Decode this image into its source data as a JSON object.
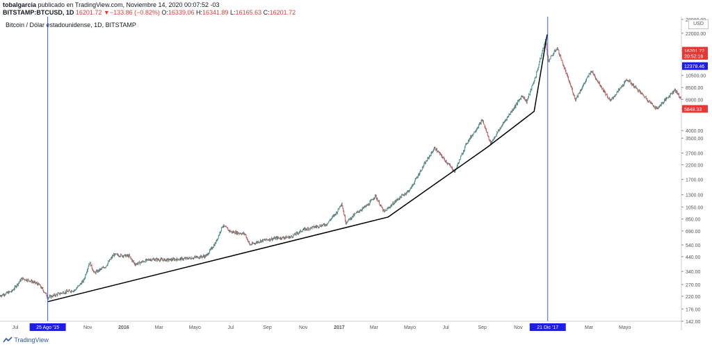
{
  "header": {
    "author": "tobalgarcia",
    "published_text": "publicado en TradingView.com, Noviembre 14, 2020 00:07:52 -03",
    "symbol": "BITSTAMP:BTCUSD, 1D",
    "last": "16201.72",
    "change": "▼−133.86 (−0.82%)",
    "open_label": "O:",
    "open": "16339.06",
    "high_label": "H:",
    "high": "16341.89",
    "low_label": "L:",
    "low": "16165.63",
    "close_label": "C:",
    "close": "16201.72"
  },
  "currency_badge": "USD",
  "footer": {
    "brand": "TradingView"
  },
  "colors": {
    "up": "#26a69a",
    "down": "#ef5350",
    "candle_line": "#444444",
    "trendline": "#000000",
    "vline": "#2962ff",
    "price_badge_red": "#e53935",
    "price_badge_blue": "#1f1fe0",
    "grid": "#f0f3fa",
    "axis_text": "#555555"
  },
  "chart_data": {
    "type": "line",
    "title": "Bitcoin / Dólar estadounidense, 1D, BITSTAMP",
    "yscale": "log",
    "ylim": [
      142,
      28000
    ],
    "xlim": [
      "2015-06-05",
      "2018-08-05"
    ],
    "y_ticks": [
      "28000.00",
      "22000.00",
      "16201.72",
      "12378.46",
      "10500.00",
      "8500.00",
      "6900.00",
      "5848.33",
      "4000.00",
      "3500.00",
      "2700.00",
      "2200.00",
      "1700.00",
      "1300.00",
      "1050.00",
      "850.00",
      "690.00",
      "540.00",
      "440.00",
      "340.00",
      "270.00",
      "220.00",
      "176.00",
      "142.00"
    ],
    "x_ticks": [
      {
        "date": "2015-07-01",
        "label": "Jul"
      },
      {
        "date": "2015-08-25",
        "label": "25 Ago '15",
        "highlight": true
      },
      {
        "date": "2015-11-01",
        "label": "Nov"
      },
      {
        "date": "2016-01-01",
        "label": "2016",
        "bold": true
      },
      {
        "date": "2016-03-01",
        "label": "Mar"
      },
      {
        "date": "2016-05-01",
        "label": "Mayo"
      },
      {
        "date": "2016-07-01",
        "label": "Jul"
      },
      {
        "date": "2016-09-01",
        "label": "Sep"
      },
      {
        "date": "2016-11-01",
        "label": "Nov"
      },
      {
        "date": "2017-01-01",
        "label": "2017",
        "bold": true
      },
      {
        "date": "2017-03-01",
        "label": "Mar"
      },
      {
        "date": "2017-05-01",
        "label": "Mayo"
      },
      {
        "date": "2017-07-01",
        "label": "Jul"
      },
      {
        "date": "2017-09-01",
        "label": "Sep"
      },
      {
        "date": "2017-11-01",
        "label": "Nov"
      },
      {
        "date": "2017-12-21",
        "label": "21 Dic '17",
        "highlight": true
      },
      {
        "date": "2018-03-01",
        "label": "Mar"
      },
      {
        "date": "2018-05-01",
        "label": "Mayo"
      }
    ],
    "price_series": [
      [
        "2015-06-05",
        222
      ],
      [
        "2015-06-25",
        240
      ],
      [
        "2015-07-12",
        300
      ],
      [
        "2015-07-25",
        290
      ],
      [
        "2015-08-10",
        270
      ],
      [
        "2015-08-20",
        235
      ],
      [
        "2015-08-25",
        215
      ],
      [
        "2015-09-20",
        235
      ],
      [
        "2015-10-10",
        245
      ],
      [
        "2015-10-25",
        290
      ],
      [
        "2015-11-04",
        400
      ],
      [
        "2015-11-12",
        330
      ],
      [
        "2015-12-01",
        370
      ],
      [
        "2015-12-15",
        455
      ],
      [
        "2016-01-10",
        445
      ],
      [
        "2016-01-20",
        385
      ],
      [
        "2016-02-15",
        420
      ],
      [
        "2016-03-15",
        415
      ],
      [
        "2016-04-15",
        425
      ],
      [
        "2016-05-20",
        445
      ],
      [
        "2016-06-05",
        560
      ],
      [
        "2016-06-17",
        760
      ],
      [
        "2016-07-01",
        680
      ],
      [
        "2016-07-25",
        655
      ],
      [
        "2016-08-02",
        540
      ],
      [
        "2016-08-20",
        580
      ],
      [
        "2016-09-15",
        608
      ],
      [
        "2016-10-10",
        620
      ],
      [
        "2016-11-01",
        705
      ],
      [
        "2016-11-20",
        740
      ],
      [
        "2016-12-10",
        775
      ],
      [
        "2016-12-28",
        960
      ],
      [
        "2017-01-05",
        1130
      ],
      [
        "2017-01-12",
        800
      ],
      [
        "2017-02-01",
        960
      ],
      [
        "2017-02-20",
        1100
      ],
      [
        "2017-03-03",
        1280
      ],
      [
        "2017-03-18",
        960
      ],
      [
        "2017-04-10",
        1200
      ],
      [
        "2017-05-01",
        1420
      ],
      [
        "2017-05-25",
        2200
      ],
      [
        "2017-06-12",
        2950
      ],
      [
        "2017-07-16",
        1950
      ],
      [
        "2017-08-05",
        3200
      ],
      [
        "2017-09-01",
        4800
      ],
      [
        "2017-09-15",
        3200
      ],
      [
        "2017-10-10",
        4800
      ],
      [
        "2017-11-08",
        7400
      ],
      [
        "2017-11-15",
        6600
      ],
      [
        "2017-12-01",
        10500
      ],
      [
        "2017-12-17",
        19500
      ],
      [
        "2017-12-22",
        13500
      ],
      [
        "2018-01-06",
        17000
      ],
      [
        "2018-02-06",
        6900
      ],
      [
        "2018-03-05",
        11400
      ],
      [
        "2018-04-06",
        6700
      ],
      [
        "2018-05-05",
        9800
      ],
      [
        "2018-06-24",
        5848.33
      ],
      [
        "2018-07-25",
        8200
      ],
      [
        "2018-08-05",
        6900
      ]
    ],
    "trendline": [
      [
        "2015-08-25",
        200
      ],
      [
        "2017-03-25",
        880
      ],
      [
        "2017-09-10",
        3000
      ],
      [
        "2017-11-28",
        5600
      ],
      [
        "2017-12-20",
        21500
      ]
    ],
    "vlines": [
      "2015-08-25",
      "2017-12-21"
    ],
    "price_labels": [
      {
        "value": 16201.72,
        "text": "16201.72",
        "style": "red"
      },
      {
        "value": 14800,
        "text": "20:52:16",
        "style": "red"
      },
      {
        "value": 12378.46,
        "text": "12378.46",
        "style": "blue"
      },
      {
        "value": 5848.33,
        "text": "5848.33",
        "style": "red"
      }
    ]
  }
}
